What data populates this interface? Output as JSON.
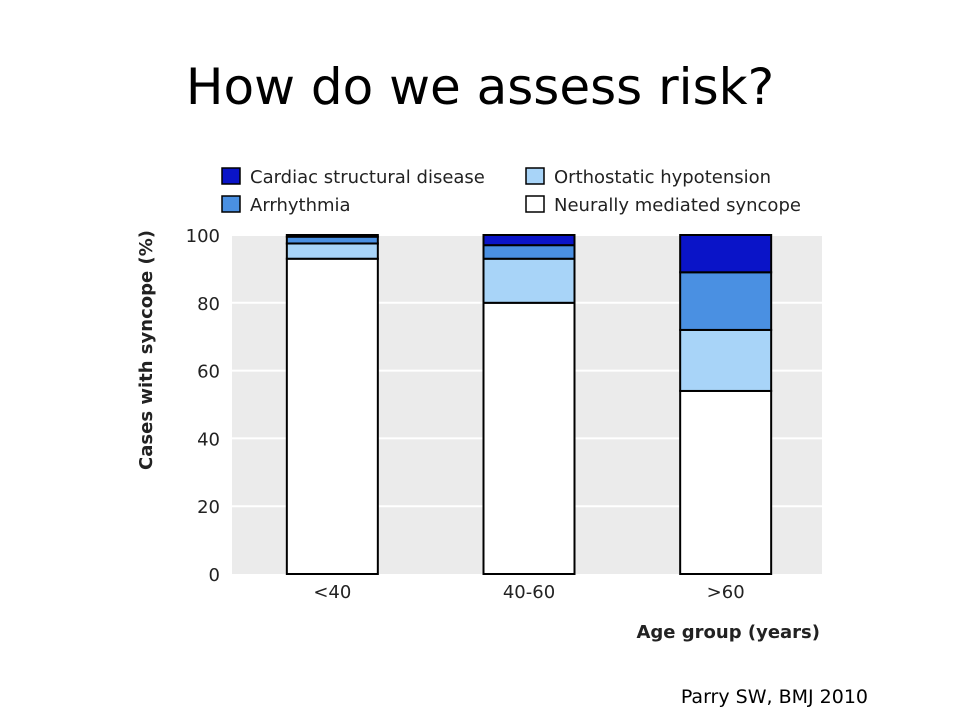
{
  "slide": {
    "title": "How do we assess risk?",
    "citation": "Parry SW, BMJ 2010"
  },
  "colors": {
    "cardiac": "#0a14c8",
    "arrhythmia": "#4a90e2",
    "orthostatic": "#a8d4f8",
    "neural": "#ffffff",
    "plot_bg": "#ebebeb",
    "grid": "#ffffff"
  },
  "chart_data": {
    "type": "bar",
    "stacked": true,
    "title": "",
    "xlabel": "Age group (years)",
    "ylabel": "Cases with syncope (%)",
    "ylim": [
      0,
      100
    ],
    "yticks": [
      "0",
      "20",
      "40",
      "60",
      "80",
      "100"
    ],
    "categories": [
      "<40",
      "40-60",
      ">60"
    ],
    "legend_position": "top",
    "grid": true,
    "series": [
      {
        "name": "Neurally mediated syncope",
        "color_key": "neural",
        "values": [
          93,
          80,
          54
        ]
      },
      {
        "name": "Orthostatic hypotension",
        "color_key": "orthostatic",
        "values": [
          4.5,
          13,
          18
        ]
      },
      {
        "name": "Arrhythmia",
        "color_key": "arrhythmia",
        "values": [
          2,
          4,
          17
        ]
      },
      {
        "name": "Cardiac structural disease",
        "color_key": "cardiac",
        "values": [
          0.5,
          3,
          11
        ]
      }
    ],
    "legend": [
      {
        "name": "Cardiac structural disease",
        "color_key": "cardiac"
      },
      {
        "name": "Orthostatic hypotension",
        "color_key": "orthostatic"
      },
      {
        "name": "Arrhythmia",
        "color_key": "arrhythmia"
      },
      {
        "name": "Neurally mediated syncope",
        "color_key": "neural"
      }
    ]
  }
}
